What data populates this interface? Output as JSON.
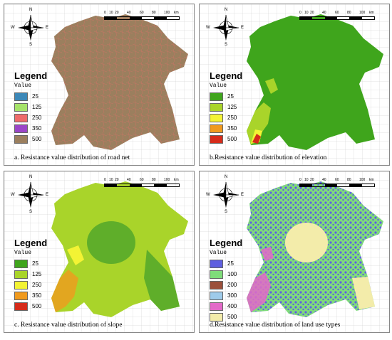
{
  "panels": [
    {
      "id": "a",
      "caption": "a. Resistance value distribution of road net",
      "legend_title": "Legend",
      "legend_sub": "Value",
      "legend": [
        {
          "label": "25",
          "color": "#3c88b8"
        },
        {
          "label": "125",
          "color": "#a6e36a"
        },
        {
          "label": "250",
          "color": "#ee6a6a"
        },
        {
          "label": "350",
          "color": "#9b46c8"
        },
        {
          "label": "500",
          "color": "#9b7f5e"
        }
      ]
    },
    {
      "id": "b",
      "caption": "b.Resistance value distribution of elevation",
      "legend_title": "Legend",
      "legend_sub": "Value",
      "legend": [
        {
          "label": "25",
          "color": "#3fa51c"
        },
        {
          "label": "125",
          "color": "#a9d42a"
        },
        {
          "label": "250",
          "color": "#f3f334"
        },
        {
          "label": "350",
          "color": "#f09a1e"
        },
        {
          "label": "500",
          "color": "#d52b1a"
        }
      ]
    },
    {
      "id": "c",
      "caption": "c. Resistance value distribution of slope",
      "legend_title": "Legend",
      "legend_sub": "Value",
      "legend": [
        {
          "label": "25",
          "color": "#3fa51c"
        },
        {
          "label": "125",
          "color": "#a9d42a"
        },
        {
          "label": "250",
          "color": "#f3f334"
        },
        {
          "label": "350",
          "color": "#f09a1e"
        },
        {
          "label": "500",
          "color": "#d52b1a"
        }
      ]
    },
    {
      "id": "d",
      "caption": "d.Resistance value distribution of land use types",
      "legend_title": "Legend",
      "legend_sub": "Value",
      "legend": [
        {
          "label": "25",
          "color": "#5f5fe0"
        },
        {
          "label": "100",
          "color": "#7fdc7a"
        },
        {
          "label": "200",
          "color": "#9b4f3a"
        },
        {
          "label": "300",
          "color": "#9ecbea"
        },
        {
          "label": "400",
          "color": "#e36ac8"
        },
        {
          "label": "500",
          "color": "#f3ecaa"
        }
      ]
    }
  ],
  "compass": {
    "n": "N",
    "s": "S",
    "e": "E",
    "w": "W"
  },
  "scale": {
    "ticks": [
      "0",
      "10",
      "20",
      "40",
      "60",
      "80",
      "100"
    ],
    "unit": "km"
  },
  "colors": {
    "road_base": "#9b7f5e",
    "road_lines": "#ee6a6a",
    "elev_base": "#3fa51c",
    "slope_base": "#5fae2a",
    "slope_light": "#a9d42a",
    "land_base": "#7fdc7a",
    "land_urban": "#5f5fe0",
    "land_water": "#f3ecaa",
    "land_pink": "#e36ac8"
  }
}
